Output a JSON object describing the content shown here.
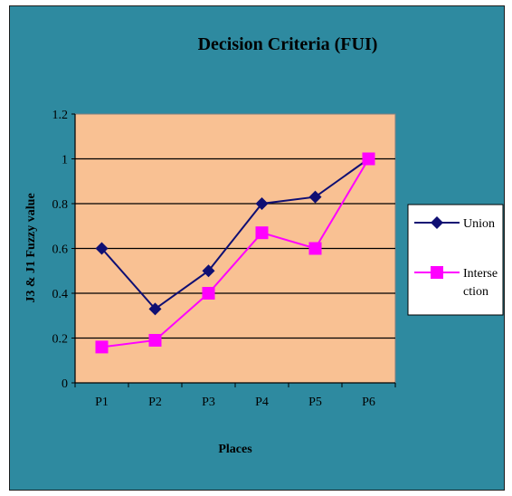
{
  "chart_data": {
    "type": "line",
    "title": "Decision Criteria (FUI)",
    "xlabel": "Places",
    "ylabel": "J3 & J1 Fuzzy value",
    "categories": [
      "P1",
      "P2",
      "P3",
      "P4",
      "P5",
      "P6"
    ],
    "ylim": [
      0,
      1.2
    ],
    "yticks": [
      "0",
      "0.2",
      "0.4",
      "0.6",
      "0.8",
      "1",
      "1.2"
    ],
    "grid": true,
    "legend": "right",
    "series": [
      {
        "name": "Union",
        "values": [
          0.6,
          0.33,
          0.5,
          0.8,
          0.83,
          1.0
        ],
        "color": "#0f0f73",
        "marker": "diamond"
      },
      {
        "name": "Intersection",
        "name_lines": [
          "Interse",
          "ction"
        ],
        "values": [
          0.16,
          0.19,
          0.4,
          0.67,
          0.6,
          1.0
        ],
        "color": "#ff00ff",
        "marker": "square"
      }
    ],
    "colors": {
      "frame": "#2e8aa0",
      "plot_bg": "#f9c193",
      "legend_bg": "#ffffff"
    }
  }
}
